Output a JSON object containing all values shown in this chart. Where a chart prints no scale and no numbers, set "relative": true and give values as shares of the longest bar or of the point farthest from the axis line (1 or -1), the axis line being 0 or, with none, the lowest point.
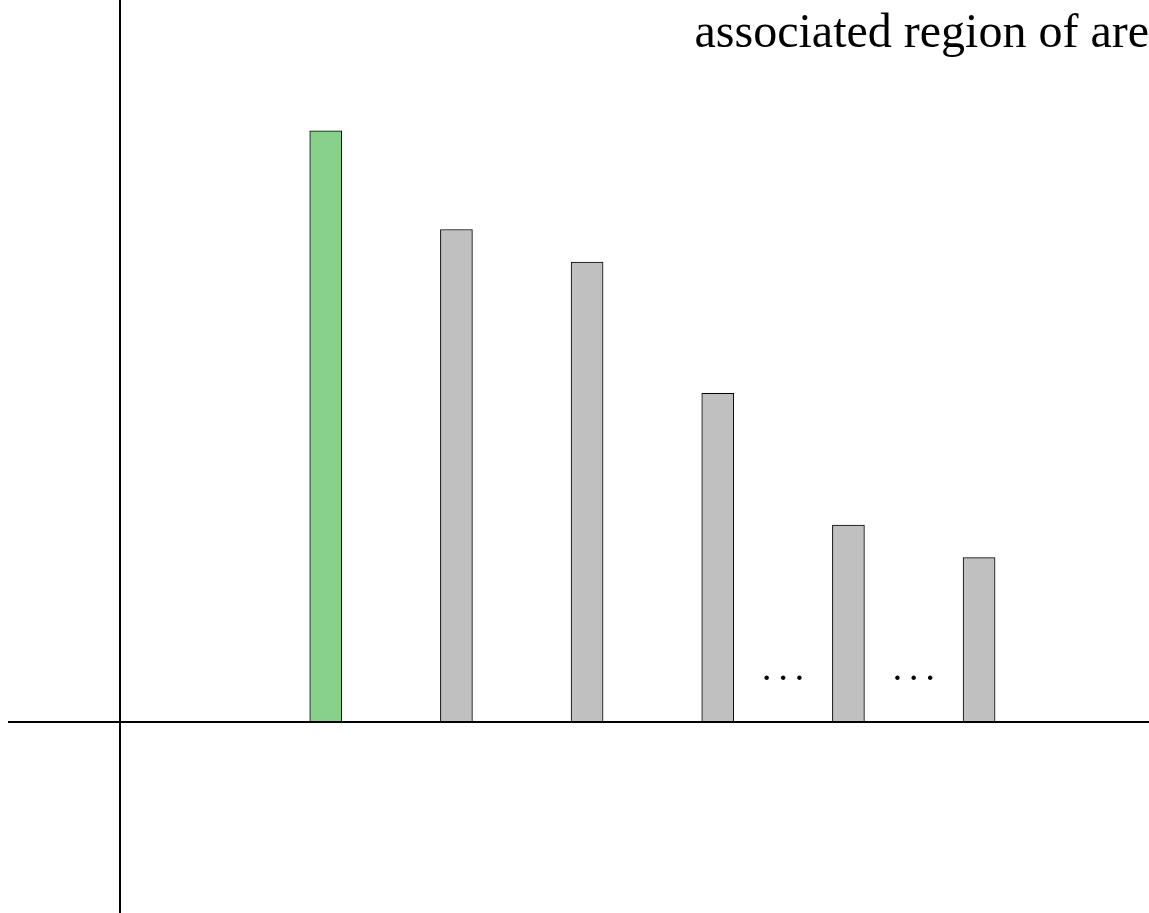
{
  "chart_data": {
    "type": "bar",
    "title": "associated region of are",
    "relative": true,
    "categories": [
      null,
      null,
      null,
      null,
      null,
      null
    ],
    "values": [
      1,
      0.833,
      0.778,
      0.556,
      0.333,
      0.278
    ],
    "colors": [
      "#88d18a",
      "#c0c0c0",
      "#c0c0c0",
      "#c0c0c0",
      "#c0c0c0",
      "#c0c0c0"
    ],
    "annotations": [
      "· · ·",
      "· · ·"
    ]
  }
}
